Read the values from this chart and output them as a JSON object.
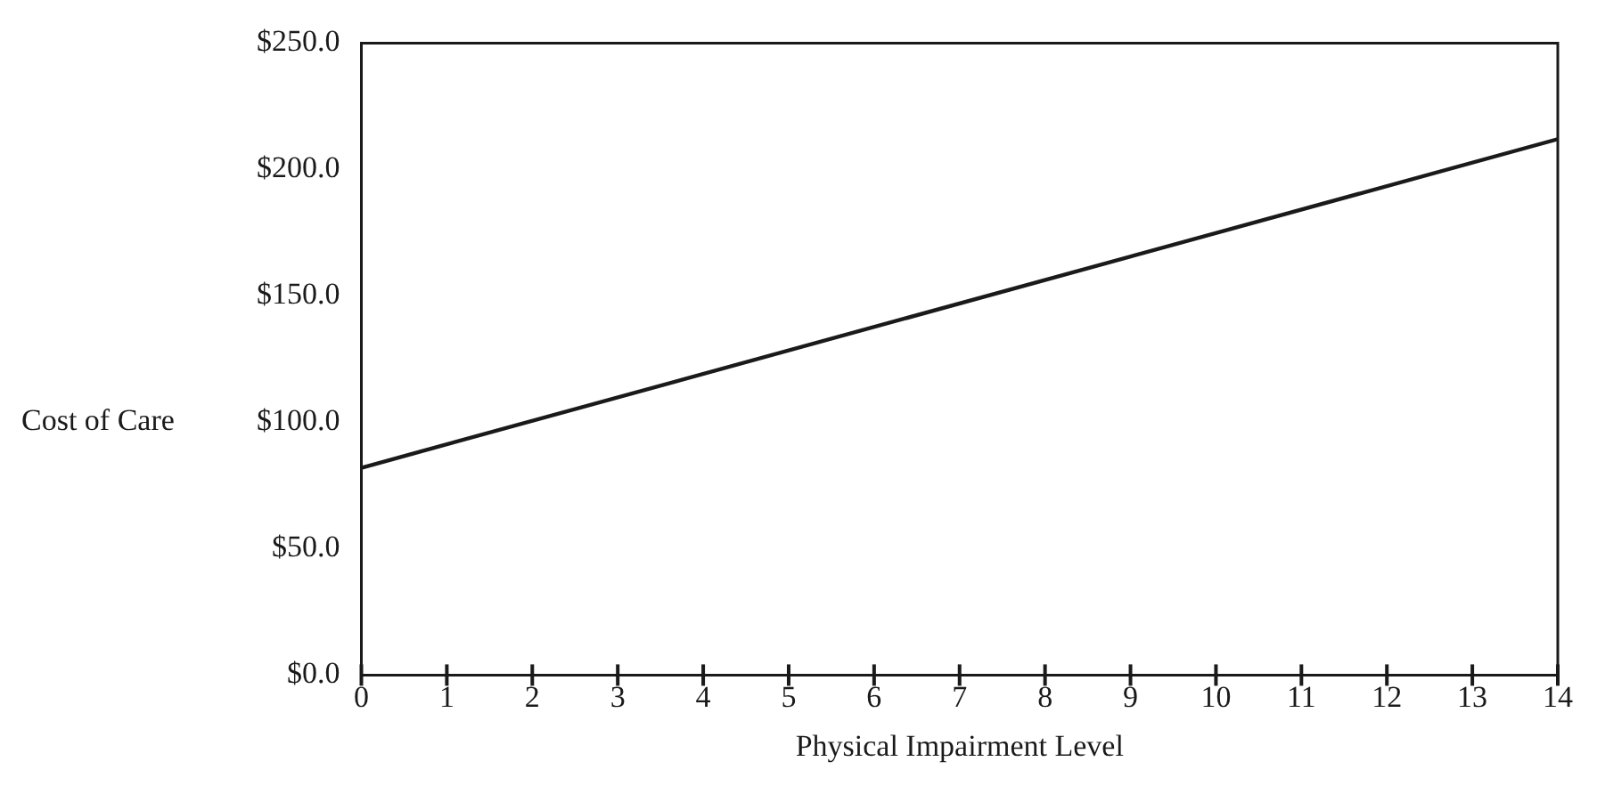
{
  "chart_data": {
    "type": "line",
    "xlabel": "Physical Impairment Level",
    "ylabel": "Cost of Care",
    "x": [
      0,
      14
    ],
    "series": [
      {
        "color": "#1a1a1a",
        "values": [
          82,
          212
        ]
      }
    ],
    "xlim": [
      0,
      14
    ],
    "xticks": [
      0,
      1,
      2,
      3,
      4,
      5,
      6,
      7,
      8,
      9,
      10,
      11,
      12,
      13,
      14
    ],
    "ylim": [
      0,
      250
    ],
    "yticks": [
      {
        "value": 0,
        "label": "$0.0"
      },
      {
        "value": 50,
        "label": "$50.0"
      },
      {
        "value": 100,
        "label": "$100.0"
      },
      {
        "value": 150,
        "label": "$150.0"
      },
      {
        "value": 200,
        "label": "$200.0"
      },
      {
        "value": 250,
        "label": "$250.0"
      }
    ],
    "grid": false,
    "legend": false,
    "marker": "none",
    "line_style": "solid"
  }
}
